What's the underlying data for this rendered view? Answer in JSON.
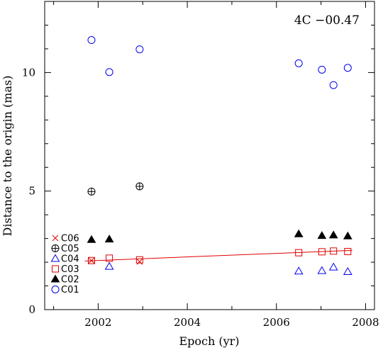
{
  "chart_data": {
    "type": "scatter",
    "annotation": "4C −00.47",
    "xlabel": "Epoch (yr)",
    "ylabel": "Distance to the origin (mas)",
    "xlim": [
      2000.8,
      2008.2
    ],
    "ylim": [
      0,
      13
    ],
    "x_ticks": [
      {
        "value": 2002,
        "label": "2002"
      },
      {
        "value": 2004,
        "label": "2004"
      },
      {
        "value": 2006,
        "label": "2006"
      },
      {
        "value": 2008,
        "label": "2008"
      }
    ],
    "y_ticks": [
      {
        "value": 0,
        "label": "0"
      },
      {
        "value": 5,
        "label": "5"
      },
      {
        "value": 10,
        "label": "10"
      }
    ],
    "legend_position": "lower-left",
    "series": [
      {
        "name": "C06",
        "marker": "cross",
        "color": "#e00000",
        "points": [
          [
            2001.85,
            2.07
          ],
          [
            2002.93,
            2.02
          ]
        ]
      },
      {
        "name": "C05",
        "marker": "circle-plus",
        "color": "#000000",
        "points": [
          [
            2001.85,
            4.98
          ],
          [
            2002.93,
            5.2
          ]
        ]
      },
      {
        "name": "C04",
        "marker": "triangle-open",
        "color": "#0000ee",
        "points": [
          [
            2002.25,
            1.82
          ],
          [
            2006.5,
            1.62
          ],
          [
            2007.02,
            1.64
          ],
          [
            2007.28,
            1.79
          ],
          [
            2007.6,
            1.6
          ]
        ]
      },
      {
        "name": "C03",
        "marker": "square-open",
        "color": "#e00000",
        "points": [
          [
            2001.85,
            2.07
          ],
          [
            2002.25,
            2.17
          ],
          [
            2002.93,
            2.1
          ],
          [
            2006.5,
            2.4
          ],
          [
            2007.02,
            2.44
          ],
          [
            2007.28,
            2.47
          ],
          [
            2007.6,
            2.45
          ]
        ]
      },
      {
        "name": "C02",
        "marker": "triangle-filled",
        "color": "#000000",
        "points": [
          [
            2001.85,
            2.95
          ],
          [
            2002.25,
            2.97
          ],
          [
            2006.5,
            3.19
          ],
          [
            2007.02,
            3.12
          ],
          [
            2007.28,
            3.14
          ],
          [
            2007.6,
            3.1
          ]
        ]
      },
      {
        "name": "C01",
        "marker": "circle-open",
        "color": "#0000ee",
        "points": [
          [
            2001.85,
            11.37
          ],
          [
            2002.25,
            10.02
          ],
          [
            2002.93,
            10.98
          ],
          [
            2006.5,
            10.39
          ],
          [
            2007.02,
            10.12
          ],
          [
            2007.28,
            9.47
          ],
          [
            2007.6,
            10.2
          ]
        ]
      }
    ],
    "fit_line": {
      "series": "C03",
      "color": "#e00000",
      "points": [
        [
          2001.7,
          2.05
        ],
        [
          2007.7,
          2.5
        ]
      ]
    }
  }
}
